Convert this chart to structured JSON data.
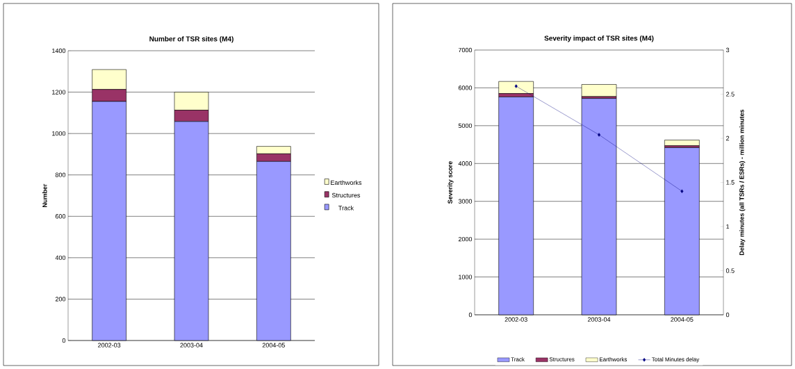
{
  "chart_data": [
    {
      "type": "bar",
      "title": "Number of TSR sites (M4)",
      "ylabel": "Number",
      "categories": [
        "2002-03",
        "2003-04",
        "2004-05"
      ],
      "stacked": true,
      "series": [
        {
          "name": "Track",
          "color": "#9999ff",
          "values": [
            1155,
            1058,
            865
          ]
        },
        {
          "name": "Structures",
          "color": "#993366",
          "values": [
            58,
            55,
            37
          ]
        },
        {
          "name": "Earthworks",
          "color": "#ffffcc",
          "values": [
            96,
            87,
            36
          ]
        }
      ],
      "ylim": [
        0,
        1400
      ],
      "yticks": [
        0,
        200,
        400,
        600,
        800,
        1000,
        1200,
        1400
      ],
      "grid": "y",
      "legend": "right"
    },
    {
      "type": "bar",
      "title": "Severity impact of TSR sites (M4)",
      "ylabel": "Severity score",
      "y2label": "Delay minutes (all TSRs / ESRs) - million minutes",
      "categories": [
        "2002-03",
        "2003-04",
        "2004-05"
      ],
      "stacked": true,
      "series": [
        {
          "name": "Track",
          "color": "#9999ff",
          "values": [
            5760,
            5720,
            4420
          ]
        },
        {
          "name": "Structures",
          "color": "#993366",
          "values": [
            90,
            50,
            50
          ]
        },
        {
          "name": "Earthworks",
          "color": "#ffffcc",
          "values": [
            320,
            320,
            150
          ]
        },
        {
          "name": "Total Minutes delay",
          "type": "line",
          "axis": "y2",
          "marker": "diamond",
          "color": "#000080",
          "values": [
            2.59,
            2.04,
            1.4
          ]
        }
      ],
      "ylim": [
        0,
        7000
      ],
      "yticks": [
        0,
        1000,
        2000,
        3000,
        4000,
        5000,
        6000,
        7000
      ],
      "y2lim": [
        0,
        3
      ],
      "y2ticks": [
        0,
        0.5,
        1,
        1.5,
        2,
        2.5,
        3
      ],
      "grid": "y",
      "legend": "bottom"
    }
  ]
}
